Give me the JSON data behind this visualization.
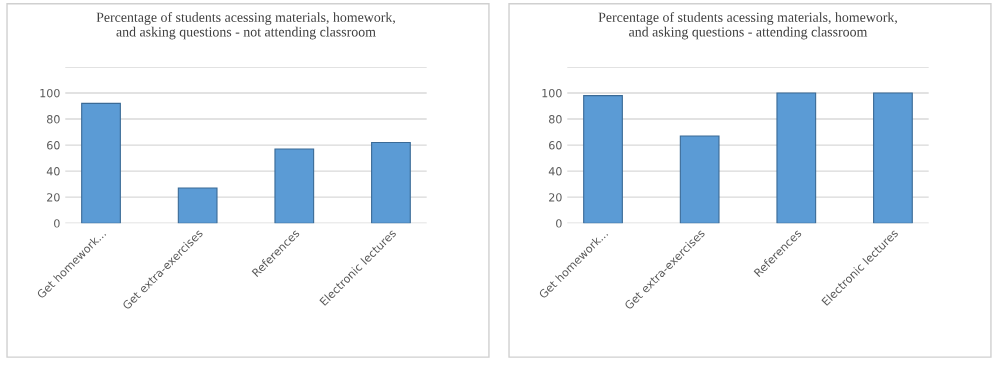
{
  "chart_data": [
    {
      "type": "bar",
      "title": "Percentage of students acessing materials, homework,\nand asking questions - not attending classroom",
      "categories": [
        "Get homework...",
        "Get extra-exercises",
        "References",
        "Electronic lectures"
      ],
      "values": [
        92,
        27,
        57,
        62
      ],
      "color": "#5b9bd5",
      "ylim": [
        0,
        120
      ],
      "yticks": [
        0,
        20,
        40,
        60,
        80,
        100,
        {
          "value": 120,
          "label": null
        }
      ],
      "grid": "y"
    },
    {
      "type": "bar",
      "title": "Percentage of students acessing materials, homework,\nand asking questions - attending classroom",
      "categories": [
        "Get homework...",
        "Get extra-exercises",
        "References",
        "Electronic lectures"
      ],
      "values": [
        98,
        67,
        100,
        100
      ],
      "color": "#5b9bd5",
      "ylim": [
        0,
        120
      ],
      "yticks": [
        0,
        20,
        40,
        60,
        80,
        100,
        {
          "value": 120,
          "label": null
        }
      ],
      "grid": "y"
    }
  ]
}
